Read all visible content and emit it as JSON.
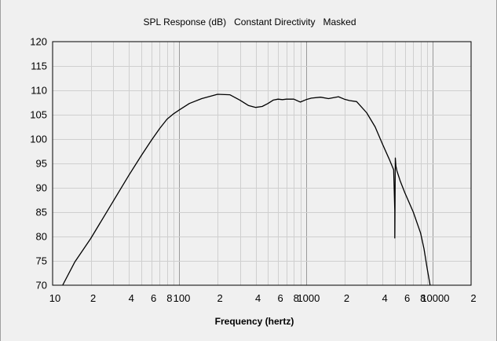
{
  "chart_data": {
    "type": "line",
    "title": "SPL Response (dB)   Constant Directivity   Masked",
    "xlabel": "Frequency (hertz)",
    "ylabel": "",
    "xscale": "log",
    "xlim": [
      10,
      20000
    ],
    "ylim": [
      70,
      120
    ],
    "grid": true,
    "legend": "none",
    "x_tick_labels": [
      {
        "value": 10,
        "label": "10"
      },
      {
        "value": 20,
        "label": "2"
      },
      {
        "value": 40,
        "label": "4"
      },
      {
        "value": 60,
        "label": "6"
      },
      {
        "value": 80,
        "label": "8"
      },
      {
        "value": 100,
        "label": "100"
      },
      {
        "value": 200,
        "label": "2"
      },
      {
        "value": 400,
        "label": "4"
      },
      {
        "value": 600,
        "label": "6"
      },
      {
        "value": 800,
        "label": "8"
      },
      {
        "value": 1000,
        "label": "1000"
      },
      {
        "value": 2000,
        "label": "2"
      },
      {
        "value": 4000,
        "label": "4"
      },
      {
        "value": 6000,
        "label": "6"
      },
      {
        "value": 8000,
        "label": "8"
      },
      {
        "value": 10000,
        "label": "10000"
      },
      {
        "value": 20000,
        "label": "2"
      }
    ],
    "y_ticks": [
      70,
      75,
      80,
      85,
      90,
      95,
      100,
      105,
      110,
      115,
      120
    ],
    "series": [
      {
        "color": "#000000",
        "x": [
          12,
          15,
          20,
          30,
          40,
          50,
          60,
          70,
          80,
          90,
          100,
          120,
          150,
          200,
          250,
          300,
          350,
          400,
          450,
          500,
          550,
          600,
          650,
          700,
          800,
          900,
          1000,
          1100,
          1300,
          1500,
          1800,
          2000,
          2200,
          2500,
          3000,
          3500,
          4000,
          4500,
          4900,
          5000,
          5001,
          5050,
          5100,
          5200,
          5500,
          6000,
          7000,
          8000,
          8500,
          9000,
          9500
        ],
        "y": [
          70,
          74.8,
          79.6,
          87.2,
          92.6,
          96.6,
          99.7,
          102.2,
          104.1,
          105.2,
          106.0,
          107.3,
          108.3,
          109.2,
          109.1,
          108.0,
          106.9,
          106.5,
          106.7,
          107.3,
          108.0,
          108.2,
          108.1,
          108.2,
          108.2,
          107.6,
          108.1,
          108.4,
          108.6,
          108.3,
          108.7,
          108.2,
          107.9,
          107.7,
          105.4,
          102.5,
          99.0,
          96.0,
          93.7,
          85.3,
          79.7,
          96.1,
          94.5,
          93.5,
          91.5,
          89.0,
          85.0,
          80.7,
          77.5,
          73.5,
          70.0
        ]
      }
    ]
  }
}
